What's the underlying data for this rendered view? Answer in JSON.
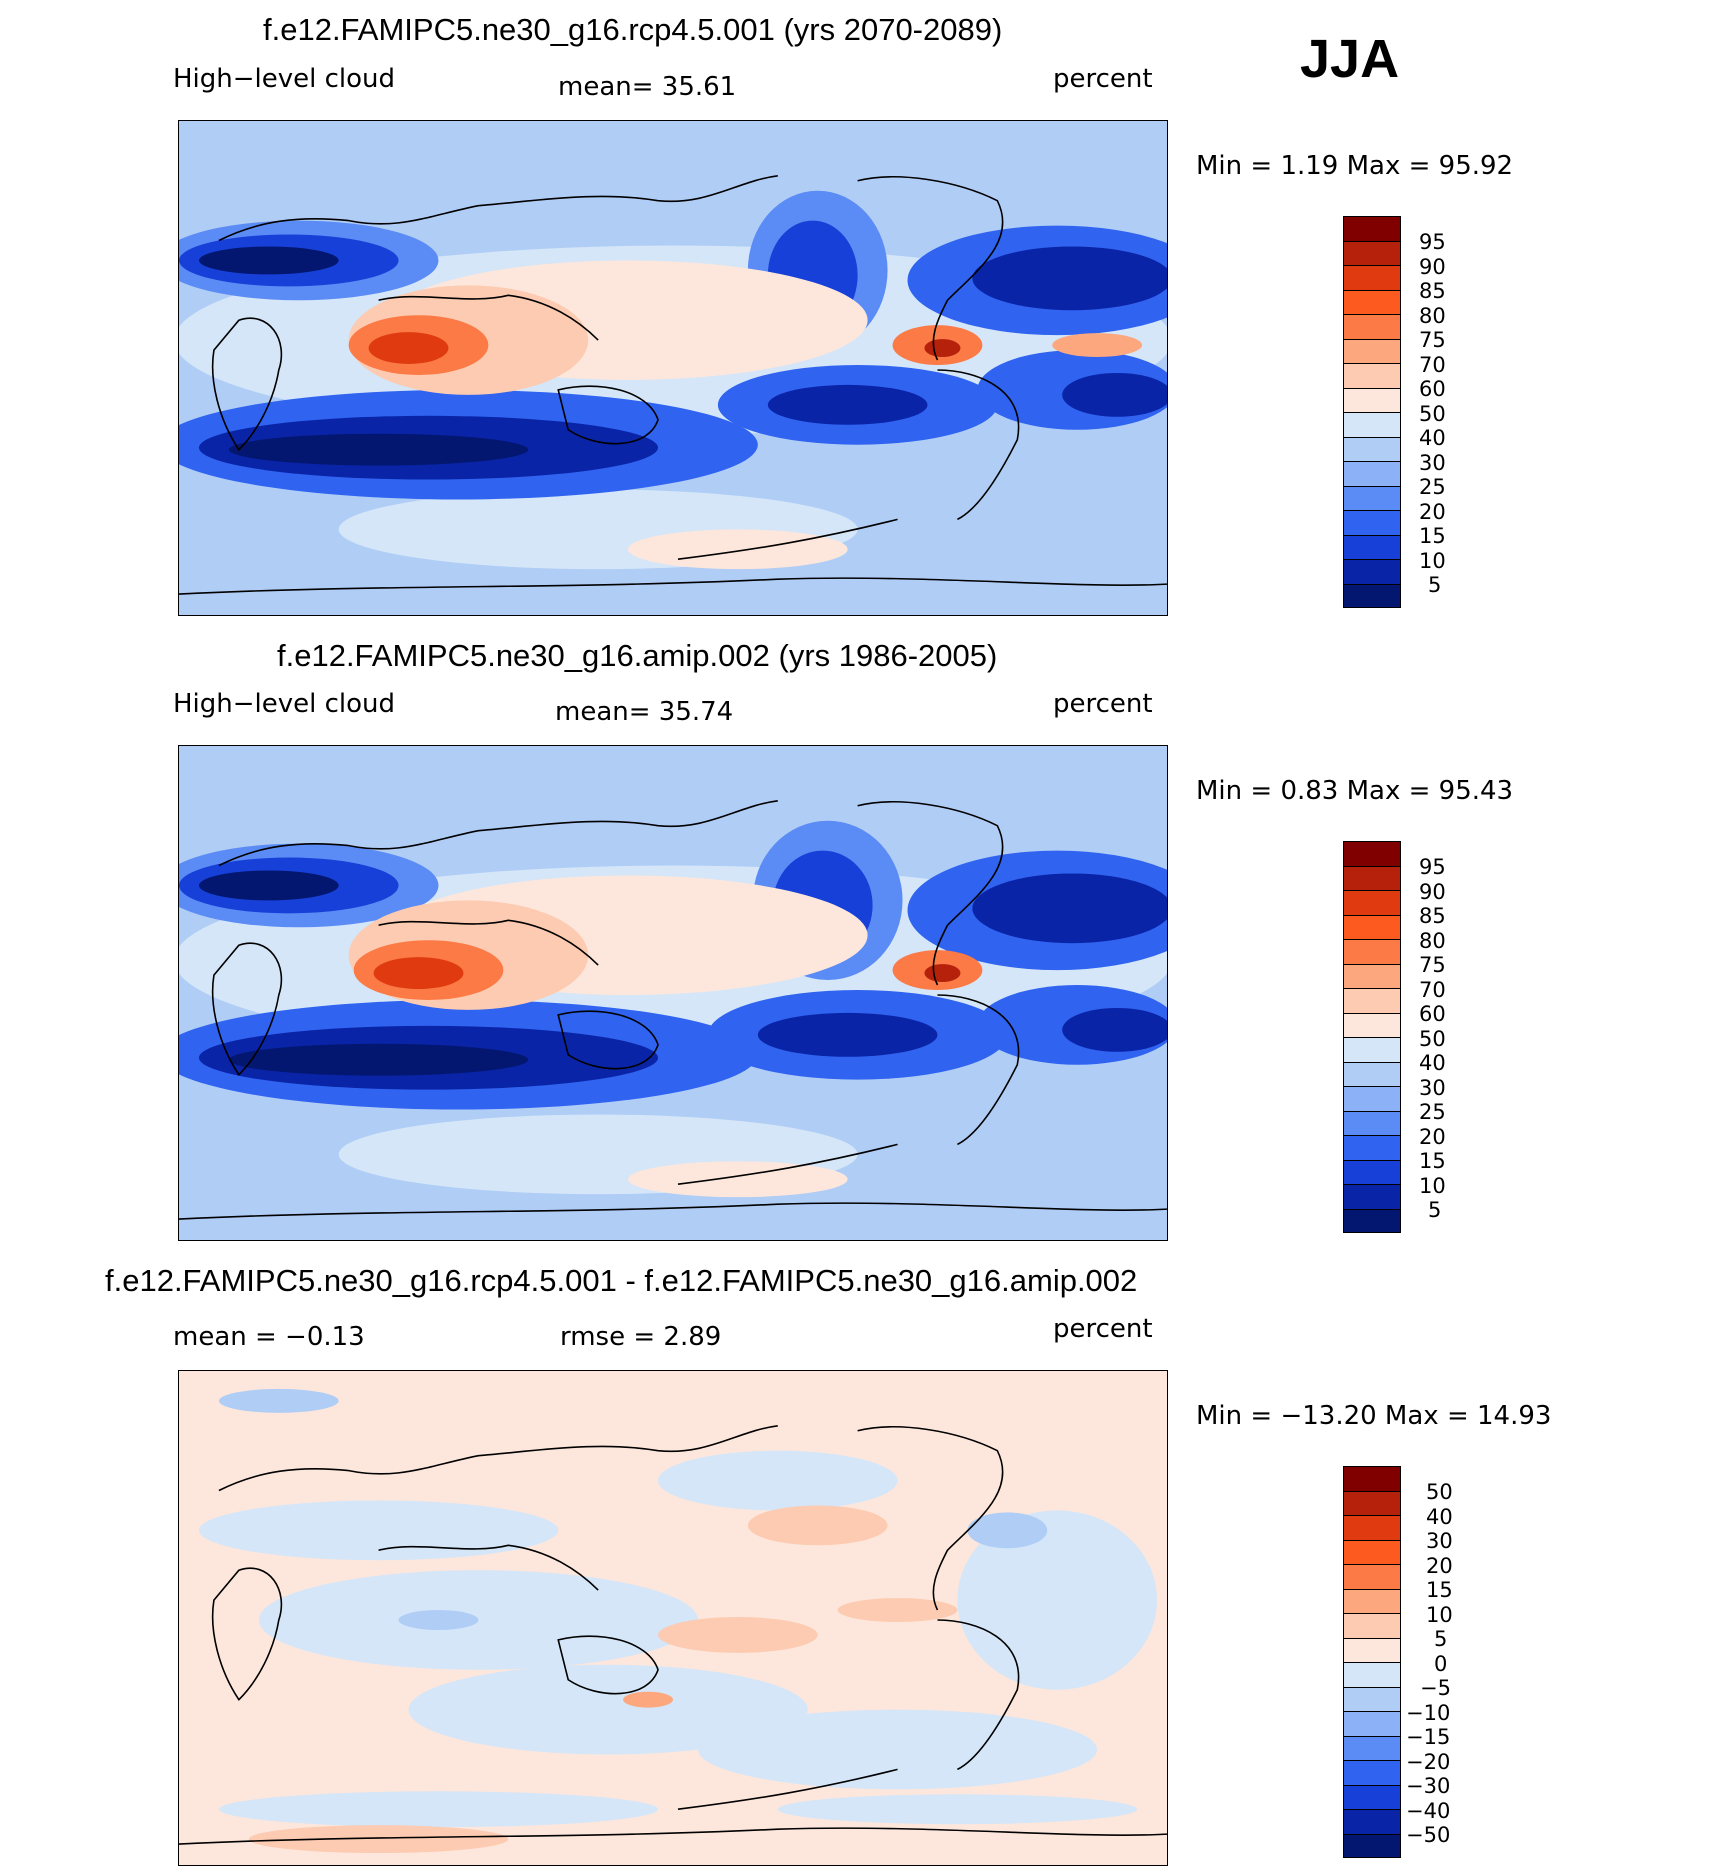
{
  "season": "JJA",
  "panels": [
    {
      "title": "f.e12.FAMIPC5.ne30_g16.rcp4.5.001 (yrs 2070-2089)",
      "left_label": "High−level cloud",
      "center_label": "mean=   35.61",
      "units": "percent",
      "minmax": "Min =     1.19  Max =    95.92",
      "levels": [
        "95",
        "90",
        "85",
        "80",
        "75",
        "70",
        "60",
        "50",
        "40",
        "30",
        "25",
        "20",
        "15",
        "10",
        "5"
      ]
    },
    {
      "title": "f.e12.FAMIPC5.ne30_g16.amip.002 (yrs 1986-2005)",
      "left_label": "High−level cloud",
      "center_label": "mean=   35.74",
      "units": "percent",
      "minmax": "Min =     0.83  Max =    95.43",
      "levels": [
        "95",
        "90",
        "85",
        "80",
        "75",
        "70",
        "60",
        "50",
        "40",
        "30",
        "25",
        "20",
        "15",
        "10",
        "5"
      ]
    },
    {
      "title": "f.e12.FAMIPC5.ne30_g16.rcp4.5.001 - f.e12.FAMIPC5.ne30_g16.amip.002",
      "left_label": "mean =   −0.13",
      "center_label": "rmse =     2.89",
      "units": "percent",
      "minmax": "Min = −13.20  Max =    14.93",
      "levels": [
        "50",
        "40",
        "30",
        "20",
        "15",
        "10",
        "5",
        "0",
        "−5",
        "−10",
        "−15",
        "−20",
        "−30",
        "−40",
        "−50"
      ]
    }
  ],
  "colors": {
    "abs_scale": [
      "#800000",
      "#b5210b",
      "#e03b10",
      "#fc5a1f",
      "#fb7a45",
      "#fca77e",
      "#fccbb1",
      "#fde7dc",
      "#d4e6f8",
      "#b0cdf6",
      "#8cb1f6",
      "#5b8bf4",
      "#2f63f0",
      "#1740d8",
      "#0a24a8",
      "#041770"
    ],
    "diff_scale": [
      "#800000",
      "#b5210b",
      "#e03b10",
      "#fc5a1f",
      "#fb7a45",
      "#fca77e",
      "#fccbb1",
      "#fde7dc",
      "#d4e6f8",
      "#b0cdf6",
      "#8cb1f6",
      "#5b8bf4",
      "#2f63f0",
      "#1740d8",
      "#0a24a8",
      "#041770"
    ]
  }
}
